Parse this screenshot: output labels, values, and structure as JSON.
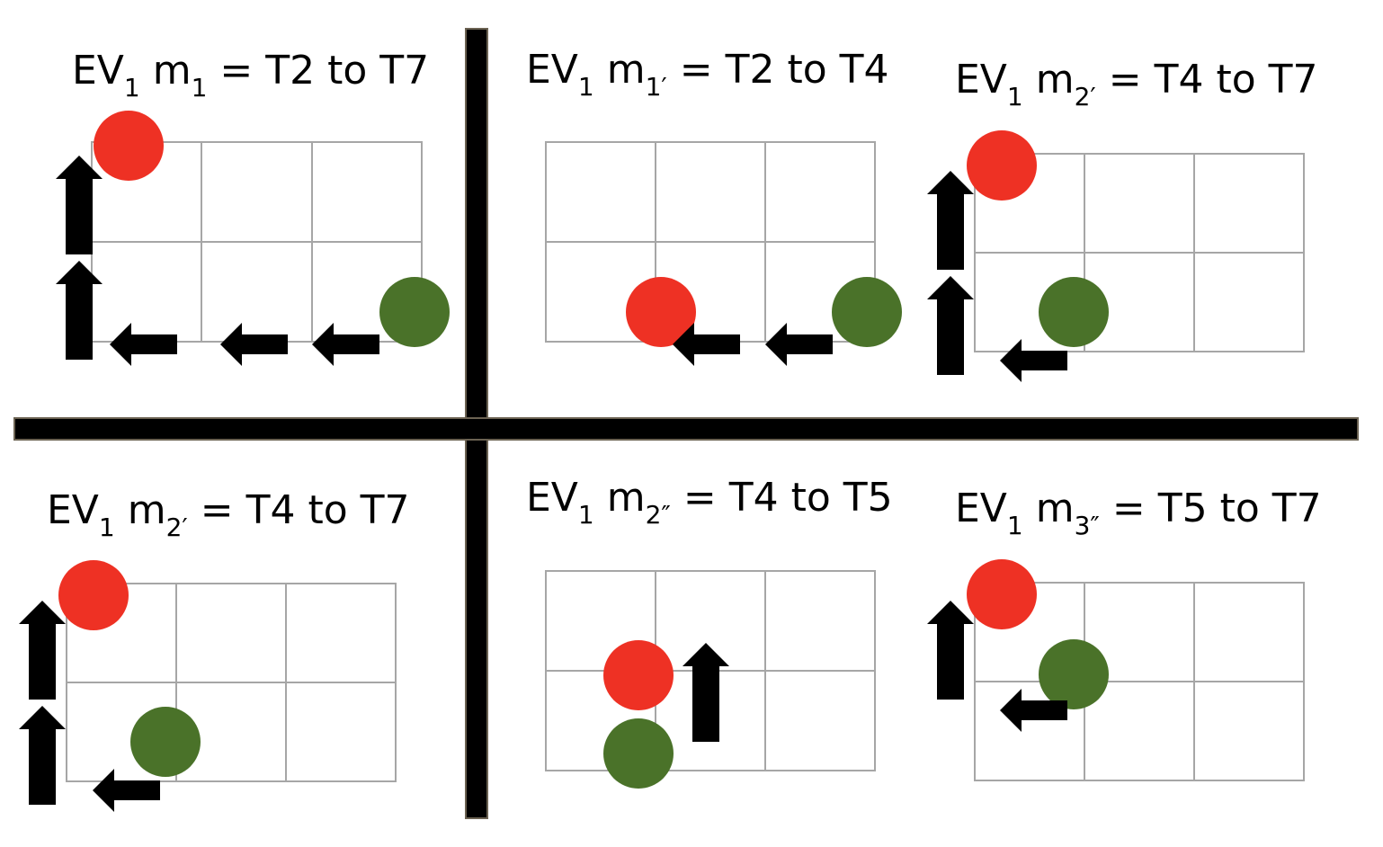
{
  "colors": {
    "red": "#ee3124",
    "green": "#4a7229",
    "arrow": "#000000",
    "grid": "#a6a6a6"
  },
  "panels": [
    {
      "id": "p1",
      "title": {
        "ev": "EV",
        "ev_sub": "1",
        "m": "m",
        "m_sub": "1",
        "rest": " = T2 to T7"
      }
    },
    {
      "id": "p2",
      "title": {
        "ev": "EV",
        "ev_sub": "1",
        "m": "m",
        "m_sub": "1′",
        "rest": " = T2 to T4"
      }
    },
    {
      "id": "p3",
      "title": {
        "ev": "EV",
        "ev_sub": "1",
        "m": "m",
        "m_sub": "2′",
        "rest": " = T4 to T7"
      }
    },
    {
      "id": "p4",
      "title": {
        "ev": "EV",
        "ev_sub": "1",
        "m": "m",
        "m_sub": "2′",
        "rest": " = T4 to T7"
      }
    },
    {
      "id": "p5",
      "title": {
        "ev": "EV",
        "ev_sub": "1",
        "m": "m",
        "m_sub": "2″",
        "rest": " = T4 to T5"
      }
    },
    {
      "id": "p6",
      "title": {
        "ev": "EV",
        "ev_sub": "1",
        "m": "m",
        "m_sub": "3″",
        "rest": " = T5 to T7"
      }
    }
  ]
}
